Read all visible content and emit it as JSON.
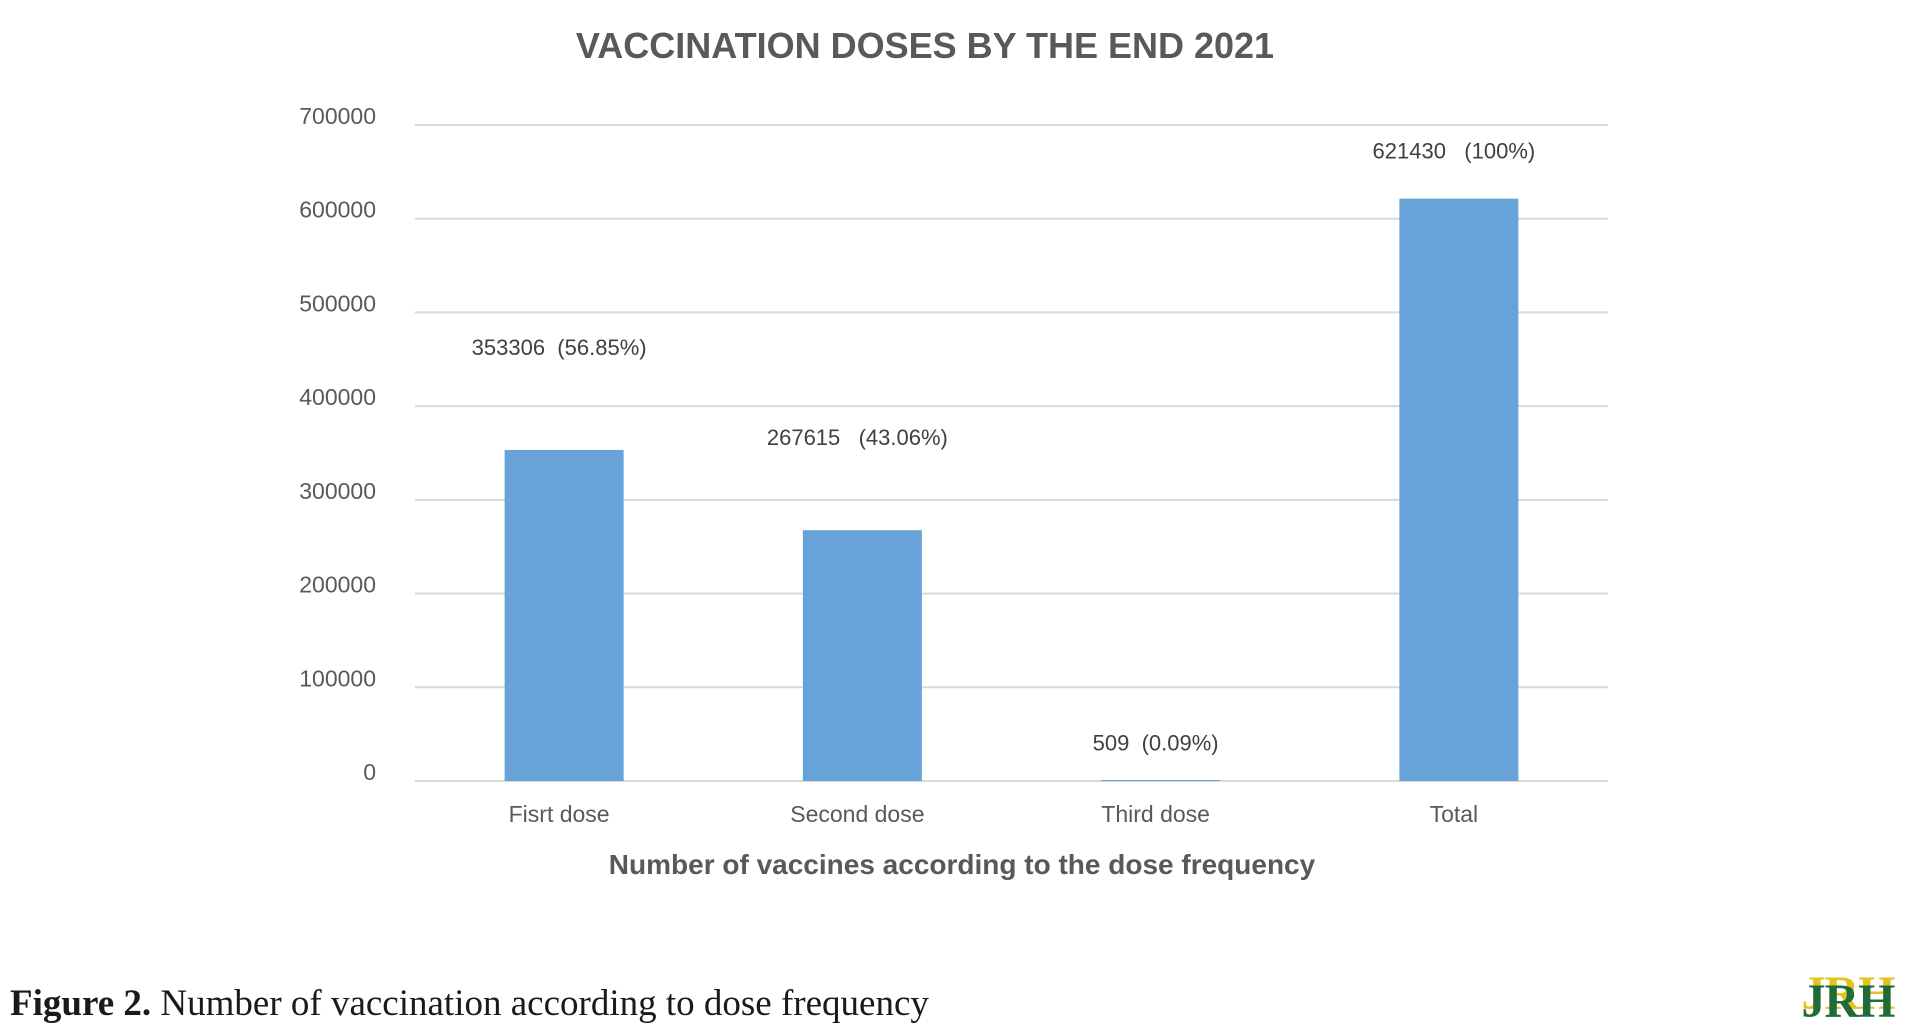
{
  "chart_data": {
    "type": "bar",
    "title": "VACCINATION DOSES BY THE END 2021",
    "xlabel": "Number of vaccines according to the dose frequency",
    "ylabel": "",
    "categories": [
      "Fisrt dose",
      "Second dose",
      "Third dose",
      "Total"
    ],
    "values": [
      353306,
      267615,
      509,
      621430
    ],
    "data_labels": [
      "353306  (56.85%)",
      "267615   (43.06%)",
      "509  (0.09%)",
      "621430   (100%)"
    ],
    "ylim": [
      0,
      700000
    ],
    "yticks": [
      "0",
      "100000",
      "200000",
      "300000",
      "400000",
      "500000",
      "600000",
      "700000"
    ],
    "grid": true,
    "bar_color": "#67a3d8",
    "grid_color": "#d9d9d9",
    "text_color": "#595959"
  },
  "caption": {
    "label": "Figure 2.",
    "text": " Number of vaccination according to dose frequency"
  },
  "logo": {
    "text": "JRH",
    "colors": [
      "#1f6b3a",
      "#e6c21a"
    ]
  }
}
